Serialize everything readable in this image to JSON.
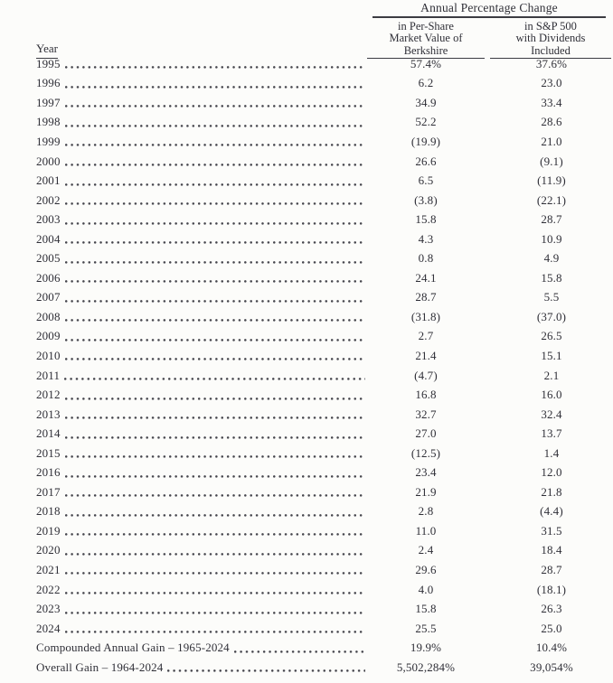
{
  "colors": {
    "ink": "#2f2f37",
    "background": "#fcfcfa",
    "rule": "#3c3c42"
  },
  "document": {
    "title": "Annual Percentage Change",
    "year_header": "Year",
    "columns": {
      "berkshire": {
        "lines": [
          "in Per-Share",
          "Market Value of",
          "Berkshire"
        ]
      },
      "sp500": {
        "lines": [
          "in S&P 500",
          "with Dividends",
          "Included"
        ]
      }
    },
    "rows": [
      {
        "label": "1995",
        "berkshire": "57.4%",
        "sp500": "37.6%"
      },
      {
        "label": "1996",
        "berkshire": "6.2",
        "sp500": "23.0"
      },
      {
        "label": "1997",
        "berkshire": "34.9",
        "sp500": "33.4"
      },
      {
        "label": "1998",
        "berkshire": "52.2",
        "sp500": "28.6"
      },
      {
        "label": "1999",
        "berkshire": "(19.9)",
        "sp500": "21.0"
      },
      {
        "label": "2000",
        "berkshire": "26.6",
        "sp500": "(9.1)"
      },
      {
        "label": "2001",
        "berkshire": "6.5",
        "sp500": "(11.9)"
      },
      {
        "label": "2002",
        "berkshire": "(3.8)",
        "sp500": "(22.1)"
      },
      {
        "label": "2003",
        "berkshire": "15.8",
        "sp500": "28.7"
      },
      {
        "label": "2004",
        "berkshire": "4.3",
        "sp500": "10.9"
      },
      {
        "label": "2005",
        "berkshire": "0.8",
        "sp500": "4.9"
      },
      {
        "label": "2006",
        "berkshire": "24.1",
        "sp500": "15.8"
      },
      {
        "label": "2007",
        "berkshire": "28.7",
        "sp500": "5.5"
      },
      {
        "label": "2008",
        "berkshire": "(31.8)",
        "sp500": "(37.0)"
      },
      {
        "label": "2009",
        "berkshire": "2.7",
        "sp500": "26.5"
      },
      {
        "label": "2010",
        "berkshire": "21.4",
        "sp500": "15.1"
      },
      {
        "label": "2011",
        "berkshire": "(4.7)",
        "sp500": "2.1"
      },
      {
        "label": "2012",
        "berkshire": "16.8",
        "sp500": "16.0"
      },
      {
        "label": "2013",
        "berkshire": "32.7",
        "sp500": "32.4"
      },
      {
        "label": "2014",
        "berkshire": "27.0",
        "sp500": "13.7"
      },
      {
        "label": "2015",
        "berkshire": "(12.5)",
        "sp500": "1.4"
      },
      {
        "label": "2016",
        "berkshire": "23.4",
        "sp500": "12.0"
      },
      {
        "label": "2017",
        "berkshire": "21.9",
        "sp500": "21.8"
      },
      {
        "label": "2018",
        "berkshire": "2.8",
        "sp500": "(4.4)"
      },
      {
        "label": "2019",
        "berkshire": "11.0",
        "sp500": "31.5"
      },
      {
        "label": "2020",
        "berkshire": "2.4",
        "sp500": "18.4"
      },
      {
        "label": "2021",
        "berkshire": "29.6",
        "sp500": "28.7"
      },
      {
        "label": "2022",
        "berkshire": "4.0",
        "sp500": "(18.1)"
      },
      {
        "label": "2023",
        "berkshire": "15.8",
        "sp500": "26.3"
      },
      {
        "label": "2024",
        "berkshire": "25.5",
        "sp500": "25.0"
      },
      {
        "label": "Compounded Annual Gain – 1965-2024",
        "berkshire": "19.9%",
        "sp500": "10.4%"
      },
      {
        "label": "Overall Gain – 1964-2024",
        "berkshire": "5,502,284%",
        "sp500": "39,054%"
      }
    ]
  }
}
